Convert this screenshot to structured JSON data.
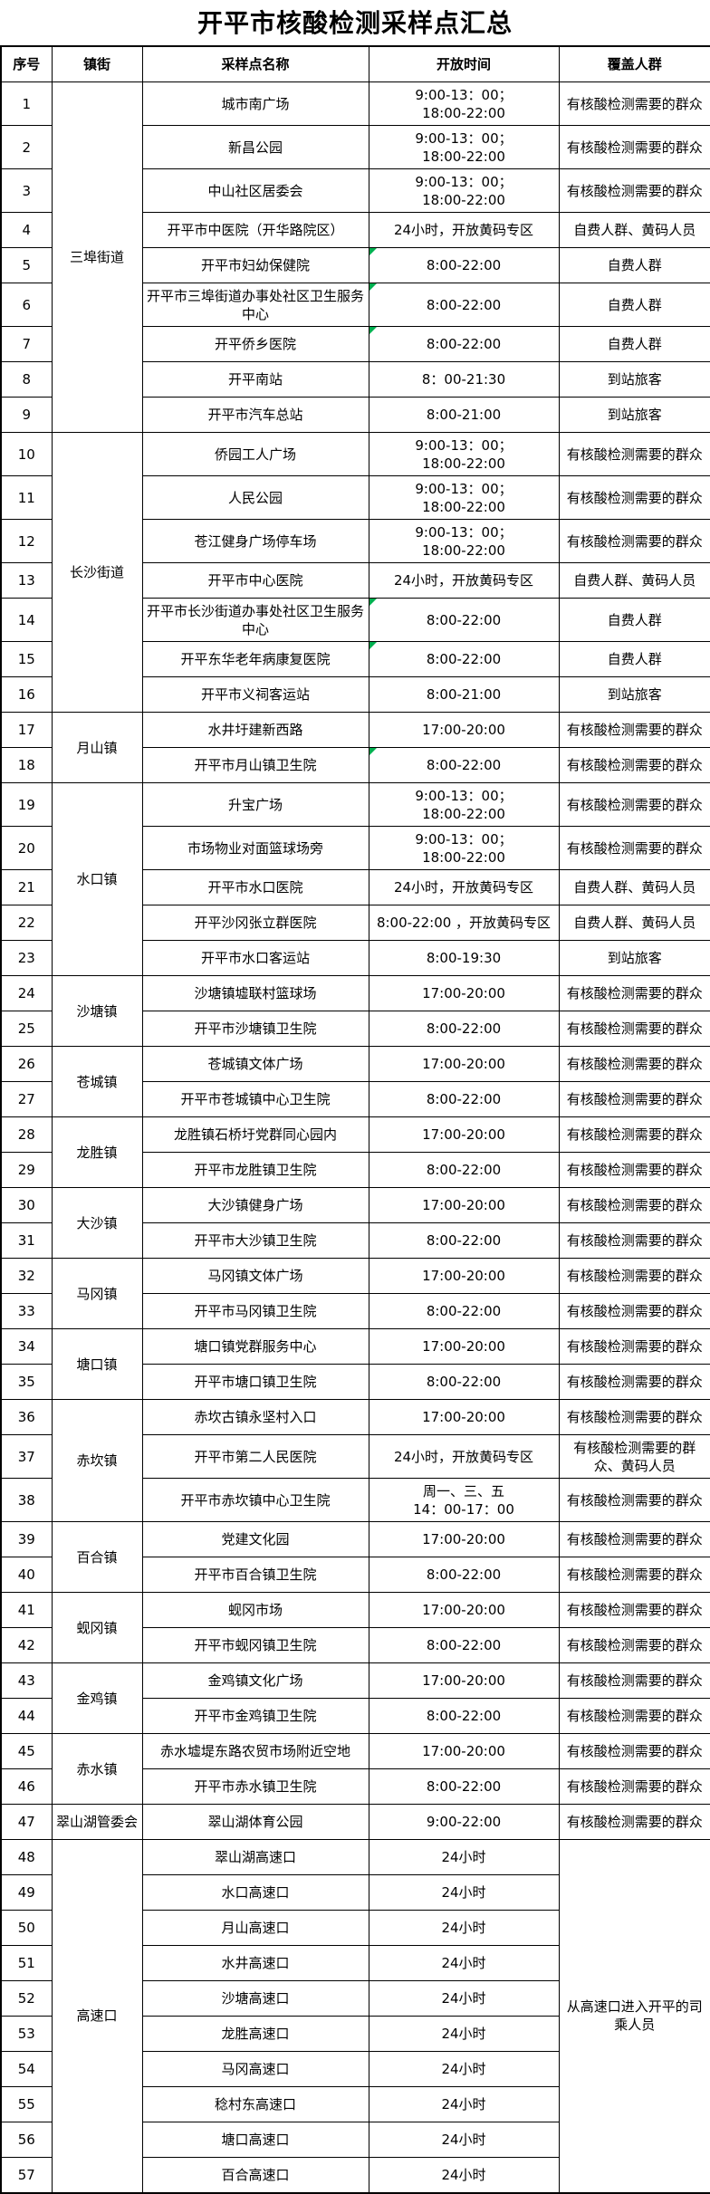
{
  "title": "开平市核酸检测采样点汇总",
  "flag_color": "#00B050",
  "table": {
    "headers": [
      "序号",
      "镇街",
      "采样点名称",
      "开放时间",
      "覆盖人群"
    ],
    "rows": [
      {
        "no": "1",
        "group": "三埠街道",
        "group_span": 9,
        "name": "城市南广场",
        "time": [
          "9:00-13：00；",
          "18:00-22:00"
        ],
        "coverage": "有核酸检测需要的群众",
        "tall": true
      },
      {
        "no": "2",
        "name": "新昌公园",
        "time": [
          "9:00-13：00；",
          "18:00-22:00"
        ],
        "coverage": "有核酸检测需要的群众",
        "tall": true
      },
      {
        "no": "3",
        "name": "中山社区居委会",
        "time": [
          "9:00-13：00；",
          "18:00-22:00"
        ],
        "coverage": "有核酸检测需要的群众",
        "tall": true
      },
      {
        "no": "4",
        "name": "开平市中医院（开华路院区）",
        "time": [
          "24小时，开放黄码专区"
        ],
        "coverage": "自费人群、黄码人员"
      },
      {
        "no": "5",
        "name": "开平市妇幼保健院",
        "time": [
          "8:00-22:00"
        ],
        "coverage": "自费人群",
        "flag": true
      },
      {
        "no": "6",
        "name": "开平市三埠街道办事处社区卫生服务中心",
        "time": [
          "8:00-22:00"
        ],
        "coverage": "自费人群",
        "flag": true,
        "tall": true
      },
      {
        "no": "7",
        "name": "开平侨乡医院",
        "time": [
          "8:00-22:00"
        ],
        "coverage": "自费人群",
        "flag": true
      },
      {
        "no": "8",
        "name": "开平南站",
        "time": [
          "8：00-21:30"
        ],
        "coverage": "到站旅客"
      },
      {
        "no": "9",
        "name": "开平市汽车总站",
        "time": [
          "8:00-21:00"
        ],
        "coverage": "到站旅客"
      },
      {
        "no": "10",
        "group": "长沙街道",
        "group_span": 7,
        "name": "侨园工人广场",
        "time": [
          "9:00-13：00；",
          "18:00-22:00"
        ],
        "coverage": "有核酸检测需要的群众",
        "tall": true
      },
      {
        "no": "11",
        "name": "人民公园",
        "time": [
          "9:00-13：00；",
          "18:00-22:00"
        ],
        "coverage": "有核酸检测需要的群众",
        "tall": true
      },
      {
        "no": "12",
        "name": "苍江健身广场停车场",
        "time": [
          "9:00-13：00；",
          "18:00-22:00"
        ],
        "coverage": "有核酸检测需要的群众",
        "tall": true
      },
      {
        "no": "13",
        "name": "开平市中心医院",
        "time": [
          "24小时，开放黄码专区"
        ],
        "coverage": "自费人群、黄码人员"
      },
      {
        "no": "14",
        "name": "开平市长沙街道办事处社区卫生服务中心",
        "time": [
          "8:00-22:00"
        ],
        "coverage": "自费人群",
        "flag": true,
        "tall": true
      },
      {
        "no": "15",
        "name": "开平东华老年病康复医院",
        "time": [
          "8:00-22:00"
        ],
        "coverage": "自费人群",
        "flag": true
      },
      {
        "no": "16",
        "name": "开平市义祠客运站",
        "time": [
          "8:00-21:00"
        ],
        "coverage": "到站旅客"
      },
      {
        "no": "17",
        "group": "月山镇",
        "group_span": 2,
        "name": "水井圩建新西路",
        "time": [
          "17:00-20:00"
        ],
        "coverage": "有核酸检测需要的群众"
      },
      {
        "no": "18",
        "name": "开平市月山镇卫生院",
        "time": [
          "8:00-22:00"
        ],
        "coverage": "有核酸检测需要的群众",
        "flag": true
      },
      {
        "no": "19",
        "group": "水口镇",
        "group_span": 5,
        "name": "升宝广场",
        "time": [
          "9:00-13：00；",
          "18:00-22:00"
        ],
        "coverage": "有核酸检测需要的群众",
        "tall": true
      },
      {
        "no": "20",
        "name": "市场物业对面篮球场旁",
        "time": [
          "9:00-13：00；",
          "18:00-22:00"
        ],
        "coverage": "有核酸检测需要的群众",
        "tall": true
      },
      {
        "no": "21",
        "name": "开平市水口医院",
        "time": [
          "24小时，开放黄码专区"
        ],
        "coverage": "自费人群、黄码人员"
      },
      {
        "no": "22",
        "name": "开平沙冈张立群医院",
        "time": [
          "8:00-22:00 ，开放黄码专区"
        ],
        "coverage": "自费人群、黄码人员"
      },
      {
        "no": "23",
        "name": "开平市水口客运站",
        "time": [
          "8:00-19:30"
        ],
        "coverage": "到站旅客"
      },
      {
        "no": "24",
        "group": "沙塘镇",
        "group_span": 2,
        "name": "沙塘镇墟联村篮球场",
        "time": [
          "17:00-20:00"
        ],
        "coverage": "有核酸检测需要的群众"
      },
      {
        "no": "25",
        "name": "开平市沙塘镇卫生院",
        "time": [
          "8:00-22:00"
        ],
        "coverage": "有核酸检测需要的群众"
      },
      {
        "no": "26",
        "group": "苍城镇",
        "group_span": 2,
        "name": "苍城镇文体广场",
        "time": [
          "17:00-20:00"
        ],
        "coverage": "有核酸检测需要的群众"
      },
      {
        "no": "27",
        "name": "开平市苍城镇中心卫生院",
        "time": [
          "8:00-22:00"
        ],
        "coverage": "有核酸检测需要的群众"
      },
      {
        "no": "28",
        "group": "龙胜镇",
        "group_span": 2,
        "name": "龙胜镇石桥圩党群同心园内",
        "time": [
          "17:00-20:00"
        ],
        "coverage": "有核酸检测需要的群众"
      },
      {
        "no": "29",
        "name": "开平市龙胜镇卫生院",
        "time": [
          "8:00-22:00"
        ],
        "coverage": "有核酸检测需要的群众"
      },
      {
        "no": "30",
        "group": "大沙镇",
        "group_span": 2,
        "name": "大沙镇健身广场",
        "time": [
          "17:00-20:00"
        ],
        "coverage": "有核酸检测需要的群众"
      },
      {
        "no": "31",
        "name": "开平市大沙镇卫生院",
        "time": [
          "8:00-22:00"
        ],
        "coverage": "有核酸检测需要的群众"
      },
      {
        "no": "32",
        "group": "马冈镇",
        "group_span": 2,
        "name": "马冈镇文体广场",
        "time": [
          "17:00-20:00"
        ],
        "coverage": "有核酸检测需要的群众"
      },
      {
        "no": "33",
        "name": "开平市马冈镇卫生院",
        "time": [
          "8:00-22:00"
        ],
        "coverage": "有核酸检测需要的群众"
      },
      {
        "no": "34",
        "group": "塘口镇",
        "group_span": 2,
        "name": "塘口镇党群服务中心",
        "time": [
          "17:00-20:00"
        ],
        "coverage": "有核酸检测需要的群众"
      },
      {
        "no": "35",
        "name": "开平市塘口镇卫生院",
        "time": [
          "8:00-22:00"
        ],
        "coverage": "有核酸检测需要的群众"
      },
      {
        "no": "36",
        "group": "赤坎镇",
        "group_span": 3,
        "name": "赤坎古镇永坚村入口",
        "time": [
          "17:00-20:00"
        ],
        "coverage": "有核酸检测需要的群众"
      },
      {
        "no": "37",
        "name": "开平市第二人民医院",
        "time": [
          "24小时，开放黄码专区"
        ],
        "coverage": "有核酸检测需要的群众、黄码人员",
        "tall": true
      },
      {
        "no": "38",
        "name": "开平市赤坎镇中心卫生院",
        "time": [
          "周一、三、五",
          "14：00-17：00"
        ],
        "coverage": "有核酸检测需要的群众",
        "tall": true
      },
      {
        "no": "39",
        "group": "百合镇",
        "group_span": 2,
        "name": "党建文化园",
        "time": [
          "17:00-20:00"
        ],
        "coverage": "有核酸检测需要的群众"
      },
      {
        "no": "40",
        "name": "开平市百合镇卫生院",
        "time": [
          "8:00-22:00"
        ],
        "coverage": "有核酸检测需要的群众"
      },
      {
        "no": "41",
        "group": "蚬冈镇",
        "group_span": 2,
        "name": "蚬冈市场",
        "time": [
          "17:00-20:00"
        ],
        "coverage": "有核酸检测需要的群众"
      },
      {
        "no": "42",
        "name": "开平市蚬冈镇卫生院",
        "time": [
          "8:00-22:00"
        ],
        "coverage": "有核酸检测需要的群众"
      },
      {
        "no": "43",
        "group": "金鸡镇",
        "group_span": 2,
        "name": "金鸡镇文化广场",
        "time": [
          "17:00-20:00"
        ],
        "coverage": "有核酸检测需要的群众"
      },
      {
        "no": "44",
        "name": "开平市金鸡镇卫生院",
        "time": [
          "8:00-22:00"
        ],
        "coverage": "有核酸检测需要的群众"
      },
      {
        "no": "45",
        "group": "赤水镇",
        "group_span": 2,
        "name": "赤水墟堤东路农贸市场附近空地",
        "time": [
          "17:00-20:00"
        ],
        "coverage": "有核酸检测需要的群众"
      },
      {
        "no": "46",
        "name": "开平市赤水镇卫生院",
        "time": [
          "8:00-22:00"
        ],
        "coverage": "有核酸检测需要的群众"
      },
      {
        "no": "47",
        "group": "翠山湖管委会",
        "group_span": 1,
        "name": "翠山湖体育公园",
        "time": [
          "9:00-22:00"
        ],
        "coverage": "有核酸检测需要的群众"
      },
      {
        "no": "48",
        "group": "高速口",
        "group_span": 10,
        "name": "翠山湖高速口",
        "time": [
          "24小时"
        ],
        "coverage": "从高速口进入开平的司乘人员",
        "coverage_span": 10
      },
      {
        "no": "49",
        "name": "水口高速口",
        "time": [
          "24小时"
        ]
      },
      {
        "no": "50",
        "name": "月山高速口",
        "time": [
          "24小时"
        ]
      },
      {
        "no": "51",
        "name": "水井高速口",
        "time": [
          "24小时"
        ]
      },
      {
        "no": "52",
        "name": "沙塘高速口",
        "time": [
          "24小时"
        ]
      },
      {
        "no": "53",
        "name": "龙胜高速口",
        "time": [
          "24小时"
        ]
      },
      {
        "no": "54",
        "name": "马冈高速口",
        "time": [
          "24小时"
        ]
      },
      {
        "no": "55",
        "name": "稔村东高速口",
        "time": [
          "24小时"
        ]
      },
      {
        "no": "56",
        "name": "塘口高速口",
        "time": [
          "24小时"
        ]
      },
      {
        "no": "57",
        "name": "百合高速口",
        "time": [
          "24小时"
        ]
      }
    ]
  }
}
